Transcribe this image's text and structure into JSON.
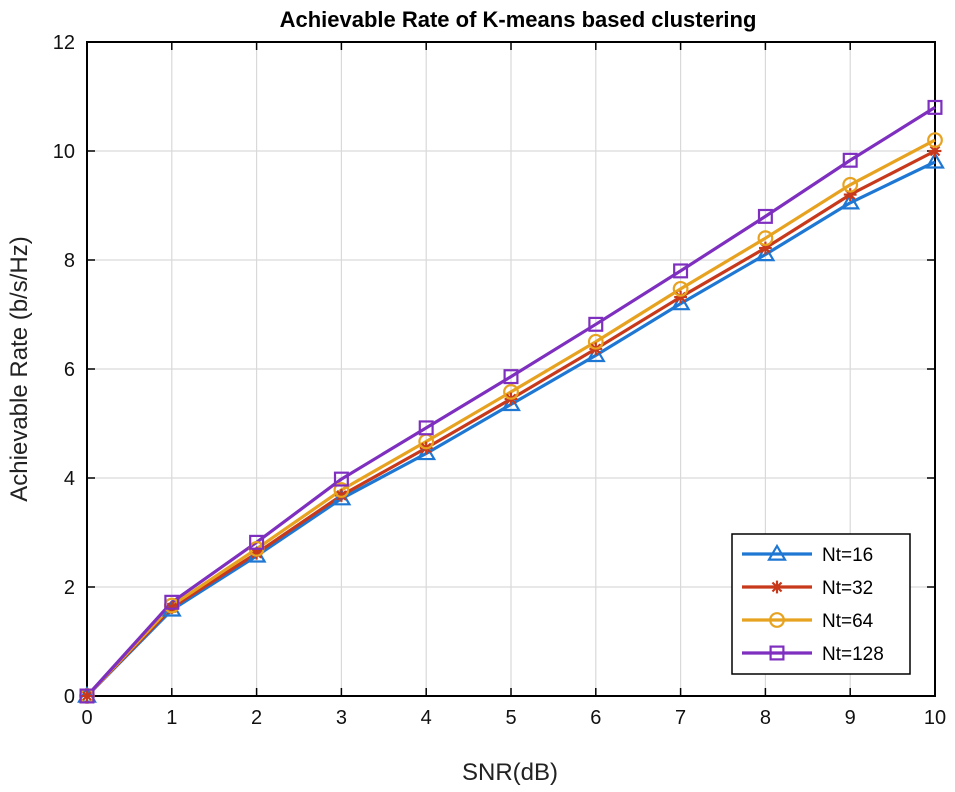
{
  "chart_data": {
    "type": "line",
    "title": "Achievable Rate of K-means based clustering",
    "xlabel": "SNR(dB)",
    "ylabel": "Achievable Rate (b/s/Hz)",
    "xlim": [
      0,
      10
    ],
    "ylim": [
      0,
      12
    ],
    "xticks": [
      0,
      1,
      2,
      3,
      4,
      5,
      6,
      7,
      8,
      9,
      10
    ],
    "yticks": [
      0,
      2,
      4,
      6,
      8,
      10,
      12
    ],
    "grid": true,
    "legend_position": "bottom-right",
    "x": [
      0,
      1,
      2,
      3,
      4,
      5,
      6,
      7,
      8,
      9,
      10
    ],
    "series": [
      {
        "name": "Nt=16",
        "color": "#1f77d4",
        "marker": "triangle",
        "values": [
          0,
          1.58,
          2.57,
          3.62,
          4.45,
          5.35,
          6.25,
          7.2,
          8.1,
          9.05,
          9.8
        ]
      },
      {
        "name": "Nt=32",
        "color": "#c8391b",
        "marker": "asterisk",
        "values": [
          0,
          1.62,
          2.62,
          3.68,
          4.55,
          5.45,
          6.37,
          7.32,
          8.22,
          9.2,
          10.0
        ]
      },
      {
        "name": "Nt=64",
        "color": "#e7a21f",
        "marker": "circle",
        "values": [
          0,
          1.66,
          2.7,
          3.78,
          4.67,
          5.58,
          6.5,
          7.47,
          8.4,
          9.38,
          10.2
        ]
      },
      {
        "name": "Nt=128",
        "color": "#7e2fbf",
        "marker": "square",
        "values": [
          0,
          1.72,
          2.82,
          3.98,
          4.92,
          5.86,
          6.82,
          7.8,
          8.8,
          9.83,
          10.8
        ]
      }
    ]
  }
}
